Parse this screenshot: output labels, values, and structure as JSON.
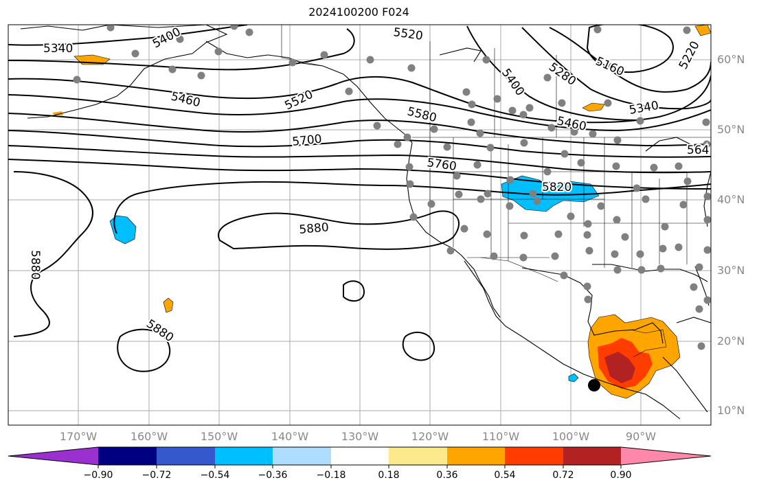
{
  "title": "2024100200 F024",
  "lat_ticks": [
    "60°N",
    "50°N",
    "40°N",
    "30°N",
    "20°N",
    "10°N"
  ],
  "lon_ticks": [
    "170°W",
    "160°W",
    "150°W",
    "140°W",
    "130°W",
    "120°W",
    "110°W",
    "100°W",
    "90°W"
  ],
  "contour_labels": [
    "5340",
    "5400",
    "5520",
    "5460",
    "5520",
    "5580",
    "5400",
    "5280",
    "5160",
    "5220",
    "5340",
    "5460",
    "5700",
    "5760",
    "564",
    "5820",
    "5880",
    "5880",
    "5880"
  ],
  "colorbar": {
    "labels": [
      "−0.90",
      "−0.72",
      "−0.54",
      "−0.36",
      "−0.18",
      "0.18",
      "0.36",
      "0.54",
      "0.72",
      "0.90"
    ],
    "colors": [
      "#9b30d0",
      "#000080",
      "#3558cc",
      "#00bfff",
      "#aeddff",
      "#ffffff",
      "#fbe98b",
      "#ffa500",
      "#ff3d00",
      "#b22222",
      "#ff88aa"
    ]
  },
  "colors": {
    "contour": "#000000",
    "grid": "#aaaaaa",
    "station": "#808080",
    "positive_low": "#ffa500",
    "positive_mid": "#ff3d00",
    "positive_high": "#b22222",
    "negative": "#00bfff"
  },
  "markers": {
    "station_dot_count": 70,
    "large_dot": "black circle marker off southern Mexico coast"
  }
}
